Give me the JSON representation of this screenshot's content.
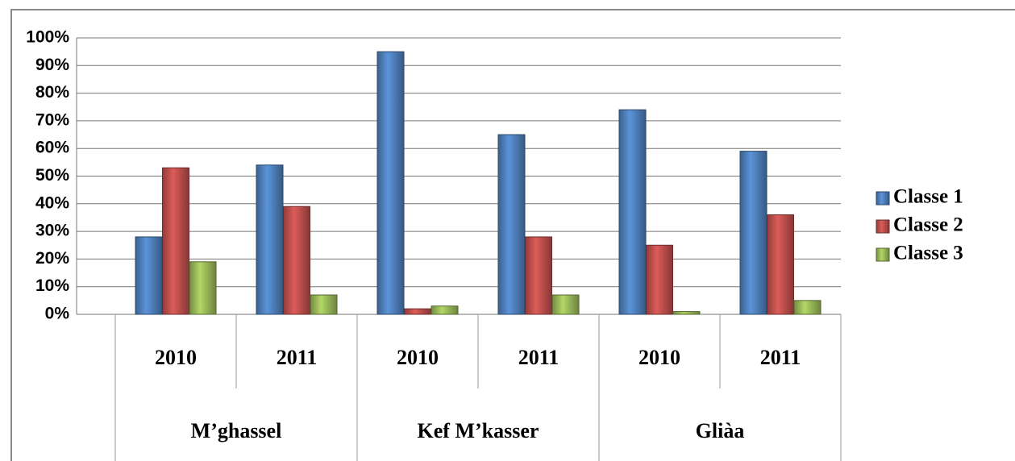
{
  "chart_data": {
    "type": "bar",
    "categories": [
      "2010",
      "2011",
      "2010",
      "2011",
      "2010",
      "2011"
    ],
    "groups": [
      "M’ghassel",
      "Kef M’kasser",
      "Gliàa"
    ],
    "series": [
      {
        "name": "Classe 1",
        "color": "#4f81bd",
        "values": [
          28,
          54,
          95,
          65,
          74,
          59
        ]
      },
      {
        "name": "Classe 2",
        "color": "#c0504d",
        "values": [
          53,
          39,
          2,
          28,
          25,
          36
        ]
      },
      {
        "name": "Classe 3",
        "color": "#9bbb59",
        "values": [
          19,
          7,
          3,
          7,
          1,
          5
        ]
      }
    ],
    "ylim": [
      0,
      100
    ],
    "yticks": [
      {
        "value": 0,
        "label": "0%"
      },
      {
        "value": 10,
        "label": "10%"
      },
      {
        "value": 20,
        "label": "20%"
      },
      {
        "value": 30,
        "label": "30%"
      },
      {
        "value": 40,
        "label": "40%"
      },
      {
        "value": 50,
        "label": "50%"
      },
      {
        "value": 60,
        "label": "60%"
      },
      {
        "value": 70,
        "label": "70%"
      },
      {
        "value": 80,
        "label": "80%"
      },
      {
        "value": 90,
        "label": "90%"
      },
      {
        "value": 100,
        "label": "100%"
      }
    ],
    "grid": true,
    "legend": "right"
  }
}
